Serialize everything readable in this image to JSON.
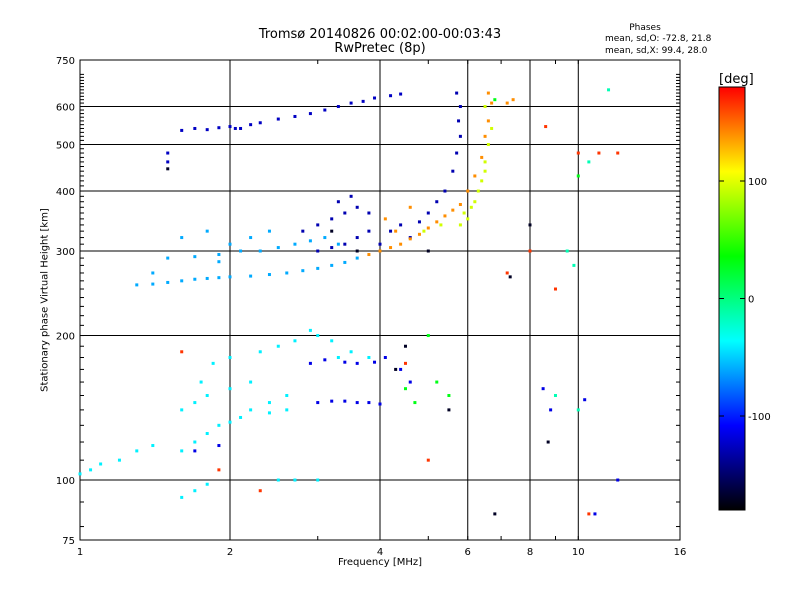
{
  "chart_data": {
    "type": "scatter",
    "title": "Tromsø 20140826 00:02:00-00:03:43",
    "subtitle": "RwPretec (8p)",
    "xlabel": "Frequency [MHz]",
    "ylabel": "Stationary phase Virtual Height [km]",
    "x_scale": "log",
    "y_scale": "log",
    "xlim": [
      1,
      16
    ],
    "ylim": [
      75,
      750
    ],
    "x_ticks": [
      1,
      2,
      4,
      6,
      8,
      10,
      16
    ],
    "y_ticks": [
      75,
      100,
      200,
      300,
      400,
      500,
      600,
      750
    ],
    "grid": true,
    "phases_title": "Phases",
    "phases_stats": [
      "mean, sd,O: -72.8, 21.8",
      "mean, sd,X:  99.4, 28.0"
    ],
    "colorbar": {
      "label": "[deg]",
      "range": [
        -180,
        180
      ],
      "ticks": [
        100,
        0,
        -100
      ],
      "colors": [
        "#ff0000",
        "#ffff00",
        "#00ff00",
        "#00ffff",
        "#0000ff",
        "#000000"
      ]
    },
    "series": [
      {
        "color_value": -125,
        "points": [
          [
            1.6,
            535
          ],
          [
            1.7,
            540
          ],
          [
            1.8,
            537
          ],
          [
            1.9,
            542
          ],
          [
            2.0,
            545
          ],
          [
            2.1,
            540
          ],
          [
            2.3,
            555
          ],
          [
            2.5,
            565
          ],
          [
            2.7,
            572
          ],
          [
            2.9,
            580
          ],
          [
            3.1,
            590
          ],
          [
            3.3,
            600
          ],
          [
            3.5,
            610
          ],
          [
            3.7,
            615
          ],
          [
            3.9,
            625
          ],
          [
            4.2,
            632
          ],
          [
            4.4,
            637
          ],
          [
            1.5,
            480
          ],
          [
            1.5,
            460
          ],
          [
            2.05,
            540
          ],
          [
            2.2,
            550
          ]
        ]
      },
      {
        "color_value": -60,
        "points": [
          [
            1.3,
            255
          ],
          [
            1.4,
            256
          ],
          [
            1.5,
            258
          ],
          [
            1.6,
            260
          ],
          [
            1.7,
            262
          ],
          [
            1.8,
            263
          ],
          [
            1.9,
            264
          ],
          [
            2.0,
            265
          ],
          [
            2.2,
            266
          ],
          [
            2.4,
            268
          ],
          [
            2.6,
            270
          ],
          [
            2.8,
            273
          ],
          [
            3.0,
            276
          ],
          [
            3.2,
            280
          ],
          [
            3.4,
            284
          ],
          [
            3.6,
            290
          ],
          [
            1.5,
            290
          ],
          [
            1.7,
            292
          ],
          [
            1.9,
            295
          ],
          [
            2.1,
            300
          ],
          [
            2.3,
            300
          ],
          [
            2.5,
            305
          ],
          [
            2.7,
            310
          ],
          [
            2.9,
            315
          ],
          [
            3.1,
            320
          ],
          [
            3.3,
            310
          ],
          [
            1.6,
            320
          ],
          [
            1.8,
            330
          ],
          [
            2.0,
            310
          ],
          [
            1.9,
            285
          ],
          [
            2.2,
            320
          ],
          [
            2.4,
            330
          ],
          [
            1.4,
            270
          ]
        ]
      },
      {
        "color_value": -130,
        "points": [
          [
            2.8,
            330
          ],
          [
            3.0,
            340
          ],
          [
            3.2,
            350
          ],
          [
            3.4,
            360
          ],
          [
            3.6,
            370
          ],
          [
            3.8,
            360
          ],
          [
            3.0,
            300
          ],
          [
            3.2,
            305
          ],
          [
            3.4,
            310
          ],
          [
            3.6,
            320
          ],
          [
            3.8,
            330
          ],
          [
            4.0,
            310
          ],
          [
            4.2,
            330
          ],
          [
            4.4,
            340
          ],
          [
            4.6,
            320
          ],
          [
            4.8,
            345
          ],
          [
            5.0,
            360
          ],
          [
            5.2,
            380
          ],
          [
            5.4,
            400
          ],
          [
            5.6,
            440
          ],
          [
            5.7,
            480
          ],
          [
            5.8,
            520
          ],
          [
            5.75,
            560
          ],
          [
            5.8,
            600
          ],
          [
            5.7,
            640
          ],
          [
            3.3,
            380
          ],
          [
            3.5,
            390
          ]
        ]
      },
      {
        "color_value": 140,
        "points": [
          [
            3.8,
            295
          ],
          [
            4.0,
            300
          ],
          [
            4.2,
            305
          ],
          [
            4.4,
            310
          ],
          [
            4.6,
            318
          ],
          [
            4.8,
            325
          ],
          [
            5.0,
            335
          ],
          [
            5.2,
            345
          ],
          [
            5.4,
            355
          ],
          [
            5.6,
            365
          ],
          [
            5.8,
            375
          ],
          [
            6.0,
            400
          ],
          [
            6.2,
            430
          ],
          [
            6.4,
            470
          ],
          [
            6.5,
            520
          ],
          [
            6.6,
            560
          ],
          [
            6.7,
            610
          ],
          [
            6.6,
            640
          ],
          [
            4.1,
            350
          ],
          [
            4.3,
            330
          ],
          [
            4.6,
            370
          ],
          [
            7.2,
            610
          ],
          [
            7.4,
            620
          ]
        ]
      },
      {
        "color_value": 95,
        "points": [
          [
            5.8,
            340
          ],
          [
            6.0,
            350
          ],
          [
            6.2,
            380
          ],
          [
            6.4,
            420
          ],
          [
            6.5,
            460
          ],
          [
            6.6,
            500
          ],
          [
            6.7,
            540
          ],
          [
            6.5,
            600
          ],
          [
            5.9,
            360
          ],
          [
            6.1,
            370
          ],
          [
            6.3,
            400
          ],
          [
            6.5,
            440
          ],
          [
            4.9,
            330
          ],
          [
            5.3,
            340
          ]
        ]
      },
      {
        "color_value": -40,
        "points": [
          [
            1.0,
            103
          ],
          [
            1.05,
            105
          ],
          [
            1.1,
            108
          ],
          [
            1.2,
            110
          ],
          [
            1.3,
            115
          ],
          [
            1.4,
            118
          ],
          [
            1.6,
            92
          ],
          [
            1.7,
            95
          ],
          [
            1.8,
            98
          ],
          [
            1.6,
            115
          ],
          [
            1.7,
            120
          ],
          [
            1.8,
            125
          ],
          [
            1.9,
            130
          ],
          [
            2.0,
            132
          ],
          [
            2.1,
            135
          ],
          [
            2.2,
            140
          ],
          [
            2.4,
            145
          ],
          [
            2.6,
            150
          ],
          [
            1.6,
            140
          ],
          [
            1.7,
            145
          ],
          [
            1.8,
            150
          ],
          [
            2.0,
            155
          ],
          [
            2.2,
            160
          ],
          [
            2.4,
            138
          ],
          [
            2.6,
            140
          ],
          [
            1.75,
            160
          ],
          [
            1.85,
            175
          ],
          [
            2.0,
            180
          ],
          [
            2.5,
            100
          ],
          [
            3.0,
            100
          ],
          [
            2.7,
            100
          ],
          [
            2.3,
            185
          ],
          [
            2.5,
            190
          ],
          [
            2.7,
            195
          ],
          [
            3.0,
            200
          ],
          [
            3.2,
            195
          ],
          [
            3.5,
            185
          ],
          [
            3.8,
            180
          ],
          [
            2.9,
            205
          ],
          [
            3.3,
            180
          ]
        ]
      },
      {
        "color_value": -115,
        "points": [
          [
            3.0,
            145
          ],
          [
            3.2,
            146
          ],
          [
            3.4,
            146
          ],
          [
            3.6,
            145
          ],
          [
            3.8,
            145
          ],
          [
            4.0,
            144
          ],
          [
            2.9,
            175
          ],
          [
            3.1,
            178
          ],
          [
            3.4,
            176
          ],
          [
            3.6,
            175
          ],
          [
            3.9,
            176
          ],
          [
            4.1,
            180
          ],
          [
            1.7,
            115
          ],
          [
            1.9,
            118
          ],
          [
            4.4,
            170
          ],
          [
            4.6,
            160
          ],
          [
            8.5,
            155
          ],
          [
            8.8,
            140
          ],
          [
            10.3,
            147
          ],
          [
            10.8,
            85
          ],
          [
            12.0,
            100
          ]
        ]
      },
      {
        "color_value": 30,
        "points": [
          [
            4.5,
            155
          ],
          [
            4.7,
            145
          ],
          [
            5.2,
            160
          ],
          [
            5.5,
            150
          ],
          [
            5.0,
            200
          ],
          [
            6.8,
            620
          ],
          [
            10.0,
            430
          ]
        ]
      },
      {
        "color_value": -15,
        "points": [
          [
            9.5,
            300
          ],
          [
            9.8,
            280
          ],
          [
            10.0,
            140
          ],
          [
            11.5,
            650
          ],
          [
            9.0,
            150
          ],
          [
            10.5,
            460
          ]
        ]
      },
      {
        "color_value": 165,
        "points": [
          [
            1.6,
            185
          ],
          [
            1.9,
            105
          ],
          [
            2.3,
            95
          ],
          [
            4.5,
            175
          ],
          [
            5.0,
            110
          ],
          [
            7.2,
            270
          ],
          [
            8.0,
            300
          ],
          [
            8.6,
            545
          ],
          [
            9.0,
            250
          ],
          [
            10.0,
            480
          ],
          [
            11.0,
            480
          ],
          [
            12.0,
            480
          ],
          [
            10.5,
            85
          ]
        ]
      },
      {
        "color_value": -170,
        "points": [
          [
            1.5,
            445
          ],
          [
            3.2,
            330
          ],
          [
            3.6,
            300
          ],
          [
            4.5,
            190
          ],
          [
            4.3,
            170
          ],
          [
            5.0,
            300
          ],
          [
            5.5,
            140
          ],
          [
            6.8,
            85
          ],
          [
            7.3,
            265
          ],
          [
            8.0,
            340
          ],
          [
            8.7,
            120
          ]
        ]
      }
    ]
  }
}
